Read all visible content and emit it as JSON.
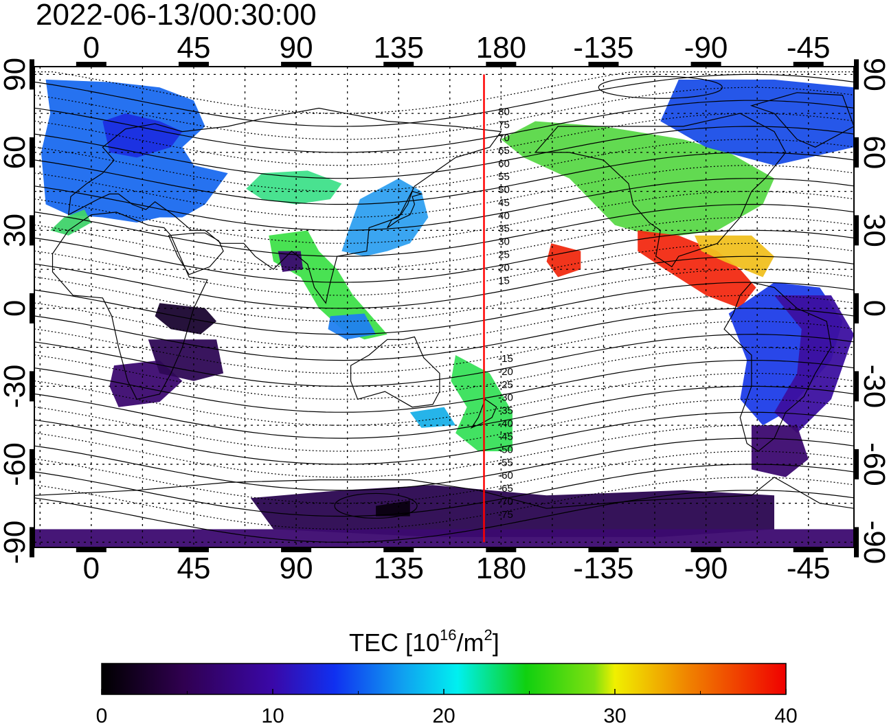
{
  "title": "2022-06-13/00:30:00",
  "map": {
    "projection": "equirectangular",
    "center_longitude": 172.5,
    "lon_range": [
      -25,
      335
    ],
    "lat_range": [
      -92,
      93
    ],
    "lon_ticks": [
      {
        "value": 0,
        "label": "0"
      },
      {
        "value": 45,
        "label": "45"
      },
      {
        "value": 90,
        "label": "90"
      },
      {
        "value": 135,
        "label": "135"
      },
      {
        "value": 180,
        "label": "180"
      },
      {
        "value": 225,
        "label": "-135"
      },
      {
        "value": 270,
        "label": "-90"
      },
      {
        "value": 315,
        "label": "-45"
      }
    ],
    "lat_ticks": [
      {
        "value": 90,
        "label": "90"
      },
      {
        "value": 60,
        "label": "60"
      },
      {
        "value": 30,
        "label": "30"
      },
      {
        "value": 0,
        "label": "0"
      },
      {
        "value": -30,
        "label": "-30"
      },
      {
        "value": -60,
        "label": "-60"
      },
      {
        "value": -90,
        "label": "-90"
      }
    ],
    "grid": true,
    "marker_longitude": 172.5,
    "marker_color": "#ff0000",
    "magnetic_latitude_labels": [
      "80",
      "75",
      "70",
      "65",
      "60",
      "55",
      "50",
      "45",
      "40",
      "35",
      "30",
      "25",
      "20",
      "15",
      "-15",
      "-20",
      "-25",
      "-30",
      "-35",
      "-40",
      "-45",
      "-50",
      "-55",
      "-60",
      "-65",
      "-70",
      "-75"
    ],
    "tec_regions": [
      {
        "name": "europe",
        "color": "#1a6aef",
        "points": [
          [
            -20,
            88
          ],
          [
            10,
            87
          ],
          [
            30,
            85
          ],
          [
            45,
            80
          ],
          [
            50,
            70
          ],
          [
            40,
            62
          ],
          [
            45,
            55
          ],
          [
            60,
            52
          ],
          [
            50,
            40
          ],
          [
            40,
            35
          ],
          [
            30,
            35
          ],
          [
            20,
            33
          ],
          [
            5,
            35
          ],
          [
            -10,
            36
          ],
          [
            -20,
            40
          ],
          [
            -22,
            60
          ],
          [
            -18,
            75
          ]
        ]
      },
      {
        "name": "europe-north-blue",
        "color": "#1b2ee0",
        "points": [
          [
            5,
            72
          ],
          [
            15,
            75
          ],
          [
            30,
            72
          ],
          [
            40,
            68
          ],
          [
            35,
            62
          ],
          [
            20,
            58
          ],
          [
            8,
            60
          ]
        ]
      },
      {
        "name": "iberia",
        "color": "#3fd36a",
        "points": [
          [
            -12,
            35
          ],
          [
            -3,
            38
          ],
          [
            0,
            33
          ],
          [
            -10,
            28
          ],
          [
            -18,
            30
          ]
        ]
      },
      {
        "name": "central-asia",
        "color": "#3fe08a",
        "points": [
          [
            75,
            52
          ],
          [
            95,
            53
          ],
          [
            110,
            48
          ],
          [
            105,
            42
          ],
          [
            90,
            40
          ],
          [
            75,
            42
          ],
          [
            68,
            46
          ]
        ]
      },
      {
        "name": "japan-china",
        "color": "#2fa0f0",
        "points": [
          [
            118,
            42
          ],
          [
            135,
            50
          ],
          [
            145,
            45
          ],
          [
            148,
            35
          ],
          [
            140,
            25
          ],
          [
            130,
            22
          ],
          [
            120,
            20
          ],
          [
            110,
            22
          ],
          [
            113,
            30
          ]
        ]
      },
      {
        "name": "india-se-asia",
        "color": "#3fe04a",
        "points": [
          [
            78,
            28
          ],
          [
            95,
            30
          ],
          [
            100,
            22
          ],
          [
            108,
            15
          ],
          [
            115,
            5
          ],
          [
            125,
            -5
          ],
          [
            130,
            -10
          ],
          [
            120,
            -12
          ],
          [
            110,
            -8
          ],
          [
            100,
            0
          ],
          [
            92,
            12
          ],
          [
            80,
            18
          ]
        ]
      },
      {
        "name": "indian-ocean-blue",
        "color": "#2080f0",
        "points": [
          [
            105,
            -3
          ],
          [
            120,
            -2
          ],
          [
            125,
            -10
          ],
          [
            112,
            -12
          ],
          [
            104,
            -8
          ]
        ]
      },
      {
        "name": "africa-purple",
        "color": "#3c0a70",
        "points": [
          [
            10,
            -22
          ],
          [
            30,
            -20
          ],
          [
            40,
            -28
          ],
          [
            30,
            -36
          ],
          [
            12,
            -38
          ],
          [
            8,
            -30
          ]
        ]
      },
      {
        "name": "africa-dark",
        "color": "#1a0530",
        "points": [
          [
            30,
            2
          ],
          [
            50,
            0
          ],
          [
            55,
            -5
          ],
          [
            48,
            -10
          ],
          [
            35,
            -8
          ],
          [
            28,
            -3
          ]
        ]
      },
      {
        "name": "africa-sparse",
        "color": "#2e0855",
        "points": [
          [
            25,
            -12
          ],
          [
            55,
            -12
          ],
          [
            58,
            -25
          ],
          [
            45,
            -28
          ],
          [
            30,
            -25
          ]
        ]
      },
      {
        "name": "arabia-dark",
        "color": "#3c0a70",
        "points": [
          [
            82,
            22
          ],
          [
            92,
            22
          ],
          [
            93,
            15
          ],
          [
            84,
            14
          ]
        ]
      },
      {
        "name": "australia-nz",
        "color": "#38e05a",
        "points": [
          [
            160,
            -18
          ],
          [
            175,
            -25
          ],
          [
            185,
            -40
          ],
          [
            185,
            -55
          ],
          [
            170,
            -55
          ],
          [
            160,
            -48
          ],
          [
            165,
            -38
          ],
          [
            158,
            -28
          ]
        ]
      },
      {
        "name": "australia-blue",
        "color": "#1ab0e8",
        "points": [
          [
            140,
            -40
          ],
          [
            155,
            -38
          ],
          [
            160,
            -45
          ],
          [
            145,
            -46
          ]
        ]
      },
      {
        "name": "north-america-green",
        "color": "#5ad848",
        "points": [
          [
            195,
            72
          ],
          [
            225,
            70
          ],
          [
            260,
            65
          ],
          [
            280,
            60
          ],
          [
            300,
            50
          ],
          [
            295,
            40
          ],
          [
            275,
            30
          ],
          [
            250,
            27
          ],
          [
            230,
            32
          ],
          [
            210,
            50
          ],
          [
            190,
            58
          ],
          [
            180,
            65
          ]
        ]
      },
      {
        "name": "canada-blue",
        "color": "#1a4ee8",
        "points": [
          [
            258,
            88
          ],
          [
            300,
            88
          ],
          [
            335,
            85
          ],
          [
            335,
            62
          ],
          [
            300,
            55
          ],
          [
            270,
            62
          ],
          [
            250,
            72
          ]
        ]
      },
      {
        "name": "mexico-red",
        "color": "#f22a12",
        "points": [
          [
            240,
            30
          ],
          [
            258,
            28
          ],
          [
            275,
            22
          ],
          [
            285,
            15
          ],
          [
            292,
            8
          ],
          [
            285,
            0
          ],
          [
            270,
            5
          ],
          [
            252,
            15
          ],
          [
            240,
            22
          ]
        ]
      },
      {
        "name": "gulf-yellow",
        "color": "#f0c020",
        "points": [
          [
            265,
            28
          ],
          [
            290,
            28
          ],
          [
            300,
            20
          ],
          [
            295,
            12
          ],
          [
            278,
            18
          ],
          [
            268,
            22
          ]
        ]
      },
      {
        "name": "hawaii-red",
        "color": "#f02a10",
        "points": [
          [
            202,
            25
          ],
          [
            215,
            22
          ],
          [
            215,
            15
          ],
          [
            205,
            12
          ],
          [
            200,
            18
          ]
        ]
      },
      {
        "name": "south-america-blue",
        "color": "#1e3de8",
        "points": [
          [
            280,
            -2
          ],
          [
            300,
            10
          ],
          [
            320,
            8
          ],
          [
            330,
            -5
          ],
          [
            325,
            -20
          ],
          [
            315,
            -30
          ],
          [
            305,
            -40
          ],
          [
            295,
            -45
          ],
          [
            285,
            -35
          ],
          [
            288,
            -20
          ]
        ]
      },
      {
        "name": "brazil-purple",
        "color": "#3c10a0",
        "points": [
          [
            300,
            5
          ],
          [
            325,
            5
          ],
          [
            335,
            -10
          ],
          [
            325,
            -35
          ],
          [
            310,
            -48
          ],
          [
            300,
            -40
          ],
          [
            310,
            -25
          ],
          [
            312,
            -8
          ]
        ]
      },
      {
        "name": "patagonia-purple",
        "color": "#3c0a70",
        "points": [
          [
            290,
            -45
          ],
          [
            310,
            -45
          ],
          [
            315,
            -58
          ],
          [
            305,
            -65
          ],
          [
            290,
            -62
          ]
        ]
      },
      {
        "name": "antarctic-dark",
        "color": "#2a0650",
        "points": [
          [
            70,
            -73
          ],
          [
            110,
            -70
          ],
          [
            150,
            -68
          ],
          [
            200,
            -72
          ],
          [
            260,
            -70
          ],
          [
            300,
            -72
          ],
          [
            300,
            -85
          ],
          [
            250,
            -88
          ],
          [
            150,
            -88
          ],
          [
            80,
            -85
          ]
        ]
      },
      {
        "name": "antarctic-band",
        "color": "#3c0a70",
        "points": [
          [
            -25,
            -85
          ],
          [
            335,
            -85
          ],
          [
            335,
            -92
          ],
          [
            -25,
            -92
          ]
        ]
      },
      {
        "name": "antarctic-black",
        "color": "#0a0010",
        "points": [
          [
            125,
            -76
          ],
          [
            140,
            -74
          ],
          [
            140,
            -80
          ],
          [
            125,
            -80
          ]
        ]
      }
    ]
  },
  "colorbar": {
    "label_main": "TEC  [10",
    "label_exp1": "16",
    "label_mid": "/m",
    "label_exp2": "2",
    "label_end": "]",
    "min": 0,
    "max": 40,
    "tick_labels": [
      "0",
      "10",
      "20",
      "30",
      "40"
    ],
    "stops": [
      {
        "offset": 0.0,
        "color": "#000000"
      },
      {
        "offset": 0.12,
        "color": "#300050"
      },
      {
        "offset": 0.25,
        "color": "#3a08a8"
      },
      {
        "offset": 0.34,
        "color": "#1030f0"
      },
      {
        "offset": 0.44,
        "color": "#10a0f0"
      },
      {
        "offset": 0.52,
        "color": "#00f0f0"
      },
      {
        "offset": 0.62,
        "color": "#10d010"
      },
      {
        "offset": 0.72,
        "color": "#80e010"
      },
      {
        "offset": 0.75,
        "color": "#f0f000"
      },
      {
        "offset": 0.86,
        "color": "#f08000"
      },
      {
        "offset": 1.0,
        "color": "#f00000"
      }
    ]
  }
}
